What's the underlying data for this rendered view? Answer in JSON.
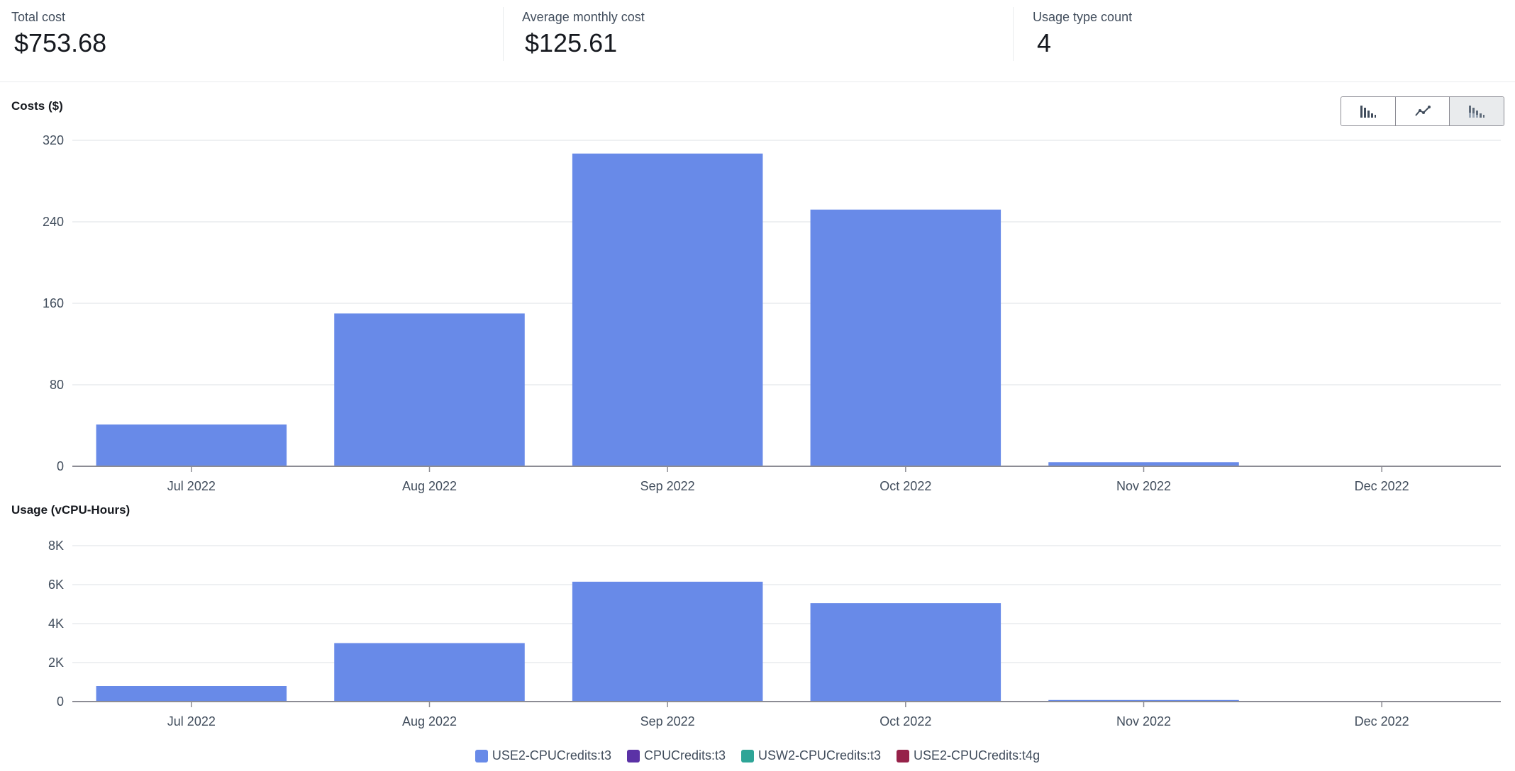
{
  "summary": {
    "total_cost_label": "Total cost",
    "total_cost_value": "$753.68",
    "avg_cost_label": "Average monthly cost",
    "avg_cost_value": "$125.61",
    "usage_count_label": "Usage type count",
    "usage_count_value": "4"
  },
  "toolbar": {
    "chart_styles": [
      "bar",
      "line",
      "stacked"
    ],
    "active_style": "stacked"
  },
  "colors": {
    "USE2-CPUCredits:t3": "#688ae8",
    "CPUCredits:t3": "#5b32a6",
    "USW2-CPUCredits:t3": "#2ea597",
    "USE2-CPUCredits:t4g": "#962249"
  },
  "legend": [
    {
      "name": "USE2-CPUCredits:t3",
      "color": "#688ae8"
    },
    {
      "name": "CPUCredits:t3",
      "color": "#5b32a6"
    },
    {
      "name": "USW2-CPUCredits:t3",
      "color": "#2ea597"
    },
    {
      "name": "USE2-CPUCredits:t4g",
      "color": "#962249"
    }
  ],
  "chart_data": [
    {
      "type": "bar",
      "title": "Costs ($)",
      "categories": [
        "Jul 2022",
        "Aug 2022",
        "Sep 2022",
        "Oct 2022",
        "Nov 2022",
        "Dec 2022"
      ],
      "series": [
        {
          "name": "USE2-CPUCredits:t3",
          "values": [
            41,
            150,
            307,
            252,
            4,
            0
          ]
        }
      ],
      "ylim": [
        0,
        320
      ],
      "yticks": [
        0,
        80,
        160,
        240,
        320
      ],
      "ytick_labels": [
        "0",
        "80",
        "160",
        "240",
        "320"
      ],
      "grid": true
    },
    {
      "type": "bar",
      "title": "Usage (vCPU-Hours)",
      "categories": [
        "Jul 2022",
        "Aug 2022",
        "Sep 2022",
        "Oct 2022",
        "Nov 2022",
        "Dec 2022"
      ],
      "series": [
        {
          "name": "USE2-CPUCredits:t3",
          "values": [
            800,
            3000,
            6150,
            5050,
            80,
            0
          ]
        }
      ],
      "ylim": [
        0,
        8000
      ],
      "yticks": [
        0,
        2000,
        4000,
        6000,
        8000
      ],
      "ytick_labels": [
        "0",
        "2K",
        "4K",
        "6K",
        "8K"
      ],
      "grid": true
    }
  ]
}
